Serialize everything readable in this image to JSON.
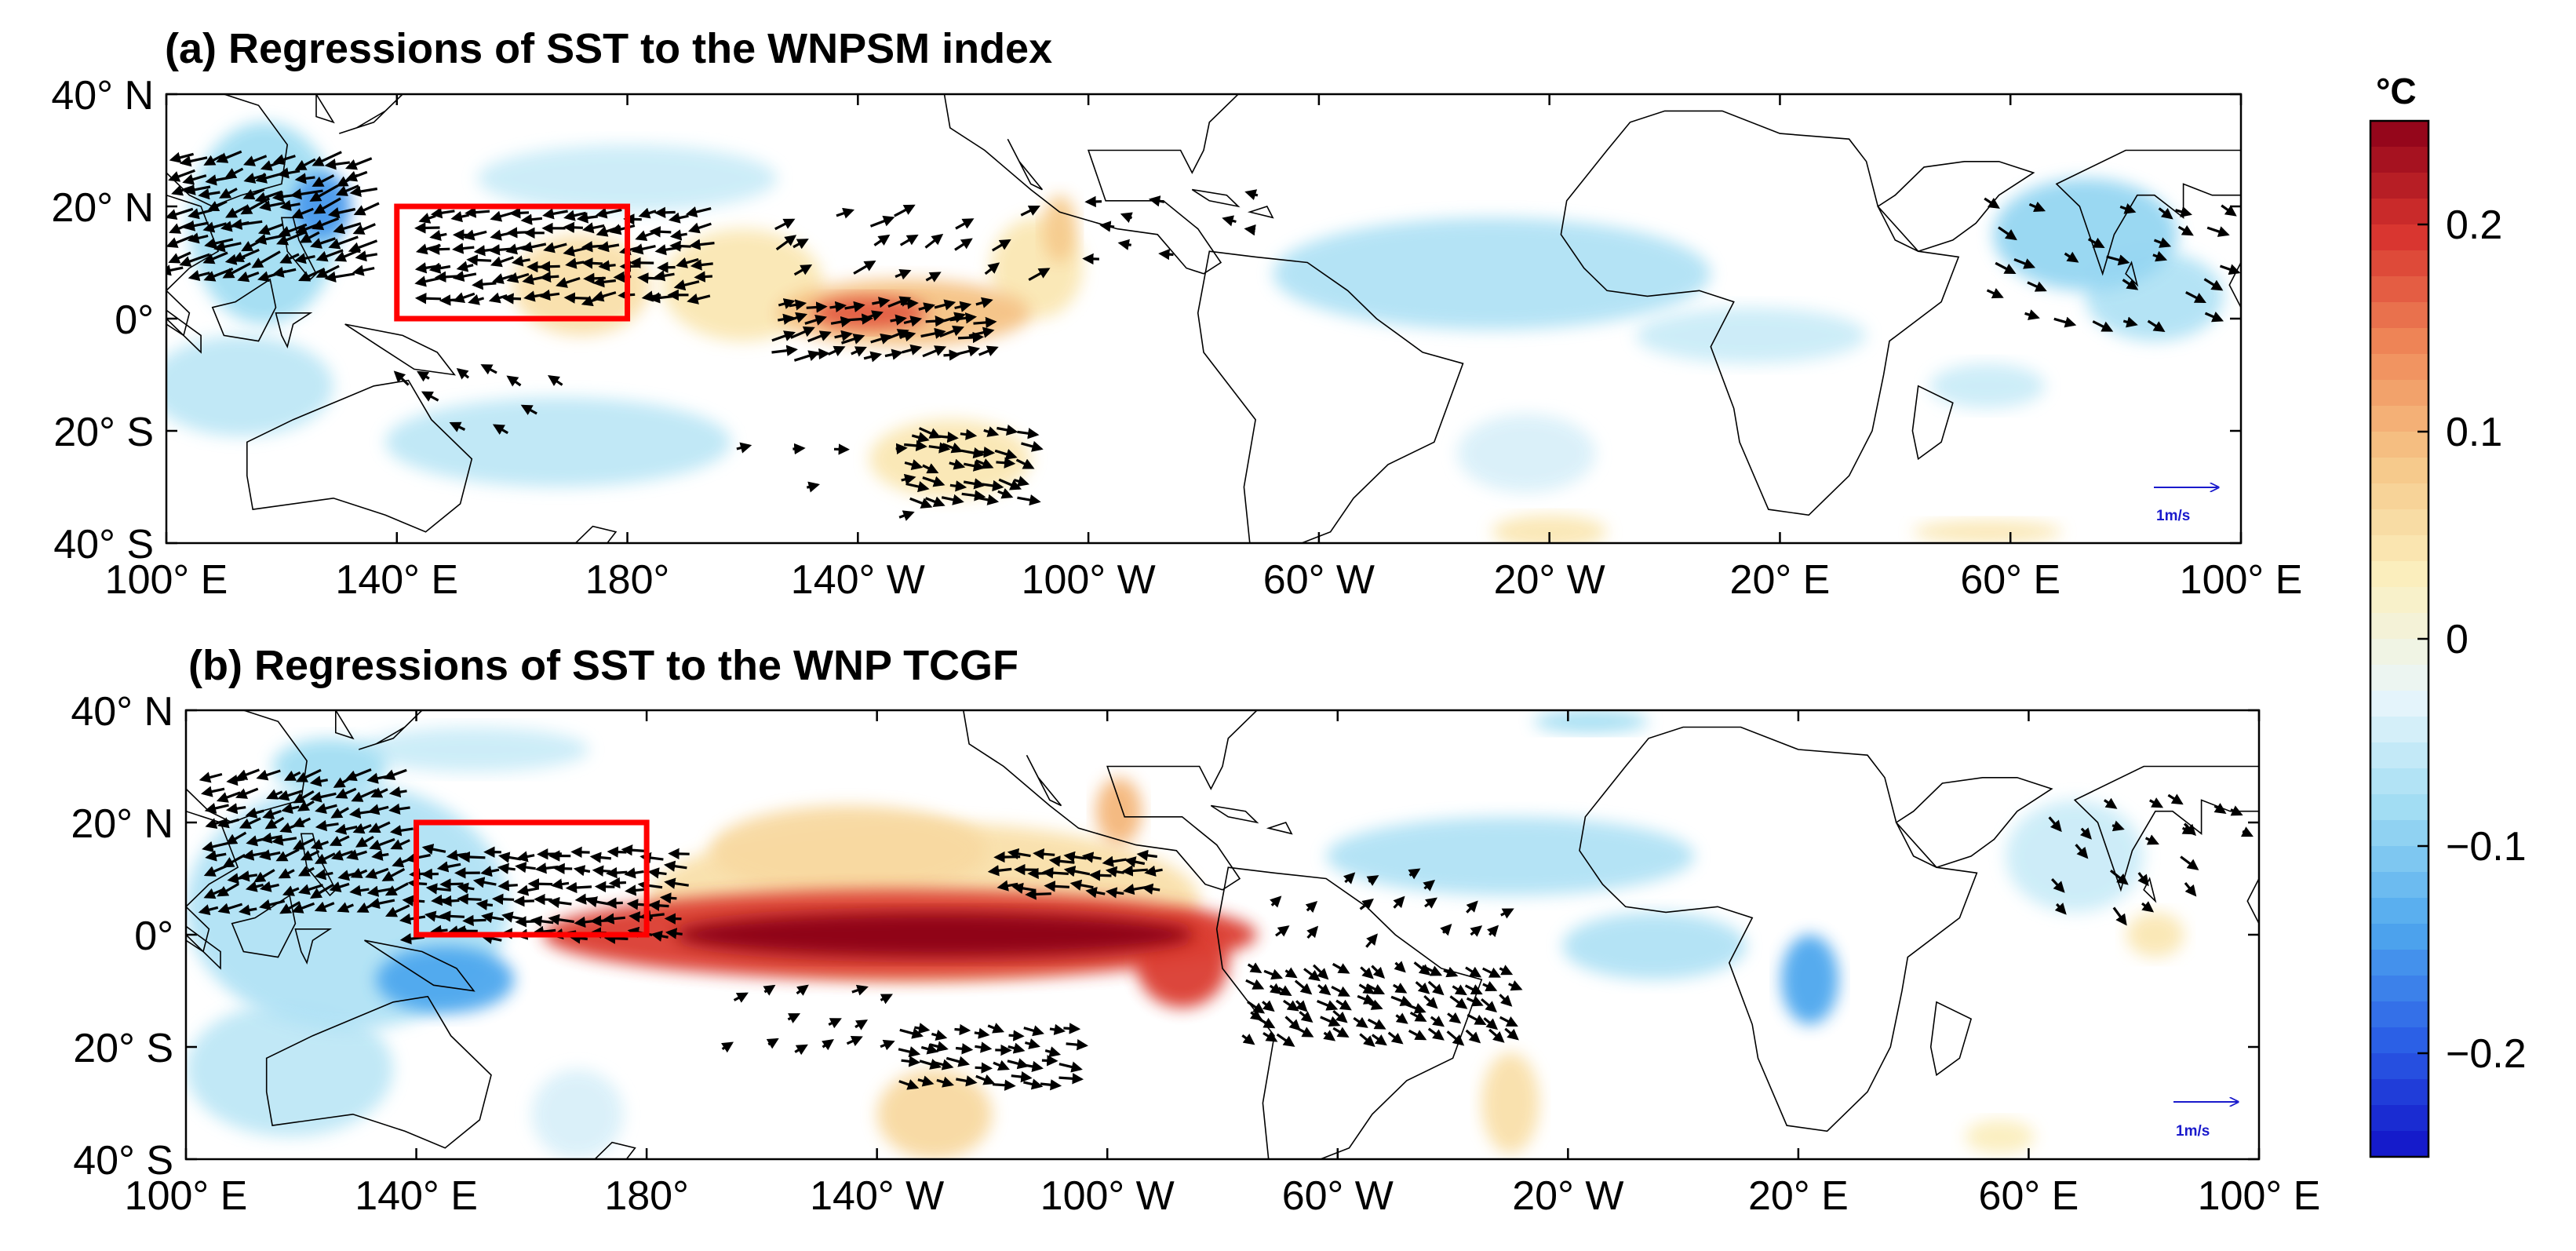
{
  "chart_data": {
    "type": "heatmap",
    "colorbar": {
      "unit_label": "°C",
      "range": [
        -0.25,
        0.25
      ],
      "ticks": [
        {
          "value": 0.2,
          "label": "0.2"
        },
        {
          "value": 0.1,
          "label": "0.1"
        },
        {
          "value": 0,
          "label": "0"
        },
        {
          "value": -0.1,
          "label": "−0.1"
        },
        {
          "value": -0.2,
          "label": "−0.2"
        }
      ],
      "colors": [
        "#1212c8",
        "#2b5fe6",
        "#4fa8ee",
        "#9fdcf3",
        "#e9f6fb",
        "#fbf0c0",
        "#f6c98a",
        "#f08c5a",
        "#d9352f",
        "#8c0018"
      ]
    },
    "panels": [
      {
        "title": "(a) Regressions of SST to the WNPSM index",
        "xticks": [
          {
            "value": 100,
            "label": "100° E"
          },
          {
            "value": 140,
            "label": "140° E"
          },
          {
            "value": 180,
            "label": "180°"
          },
          {
            "value": 220,
            "label": "140° W"
          },
          {
            "value": 260,
            "label": "100° W"
          },
          {
            "value": 300,
            "label": "60° W"
          },
          {
            "value": 340,
            "label": "20° W"
          },
          {
            "value": 380,
            "label": "20° E"
          },
          {
            "value": 420,
            "label": "60° E"
          },
          {
            "value": 460,
            "label": "100° E"
          }
        ],
        "yticks": [
          {
            "value": 40,
            "label": "40° N"
          },
          {
            "value": 20,
            "label": "20° N"
          },
          {
            "value": 0,
            "label": "0°"
          },
          {
            "value": -20,
            "label": "20° S"
          },
          {
            "value": -40,
            "label": "40° S"
          }
        ],
        "xlim": [
          100,
          460
        ],
        "ylim": [
          -40,
          40
        ],
        "box": {
          "lon": [
            140,
            180
          ],
          "lat": [
            0,
            20
          ]
        },
        "reference_vector_label": "1m/s",
        "sst_features": [
          {
            "lon": 172,
            "lat": 6,
            "rlon": 12,
            "rlat": 9,
            "value": 0.05
          },
          {
            "lon": 200,
            "lat": 6,
            "rlon": 14,
            "rlat": 10,
            "value": 0.04
          },
          {
            "lon": 228,
            "lat": 1,
            "rlon": 22,
            "rlat": 6,
            "value": 0.09
          },
          {
            "lon": 222,
            "lat": 1,
            "rlon": 10,
            "rlat": 3,
            "value": 0.17
          },
          {
            "lon": 251,
            "lat": 9,
            "rlon": 8,
            "rlat": 9,
            "value": 0.04
          },
          {
            "lon": 255,
            "lat": 16,
            "rlon": 3,
            "rlat": 6,
            "value": 0.08
          },
          {
            "lon": 236,
            "lat": -25,
            "rlon": 14,
            "rlat": 7,
            "value": 0.04
          },
          {
            "lon": 340,
            "lat": -38,
            "rlon": 10,
            "rlat": 3,
            "value": 0.04
          },
          {
            "lon": 416,
            "lat": -38,
            "rlon": 13,
            "rlat": 2,
            "value": 0.04
          },
          {
            "lon": 117,
            "lat": 17,
            "rlon": 13,
            "rlat": 18,
            "value": -0.08
          },
          {
            "lon": 127,
            "lat": 20,
            "rlon": 5,
            "rlat": 6,
            "value": -0.15
          },
          {
            "lon": 113,
            "lat": -12,
            "rlon": 16,
            "rlat": 9,
            "value": -0.06
          },
          {
            "lon": 168,
            "lat": -22,
            "rlon": 30,
            "rlat": 8,
            "value": -0.06
          },
          {
            "lon": 180,
            "lat": 25,
            "rlon": 26,
            "rlat": 6,
            "value": -0.05
          },
          {
            "lon": 330,
            "lat": 8,
            "rlon": 38,
            "rlat": 10,
            "value": -0.07
          },
          {
            "lon": 375,
            "lat": -3,
            "rlon": 20,
            "rlat": 5,
            "value": -0.05
          },
          {
            "lon": 336,
            "lat": -24,
            "rlon": 12,
            "rlat": 7,
            "value": -0.04
          },
          {
            "lon": 433,
            "lat": 15,
            "rlon": 16,
            "rlat": 10,
            "value": -0.09
          },
          {
            "lon": 445,
            "lat": 4,
            "rlon": 12,
            "rlat": 8,
            "value": -0.07
          },
          {
            "lon": 416,
            "lat": -12,
            "rlon": 10,
            "rlat": 4,
            "value": -0.05
          }
        ],
        "wind_regions": [
          {
            "lon": [
              102,
              135
            ],
            "lat": [
              8,
              30
            ],
            "u": -1.2,
            "v": -0.4,
            "dense": true
          },
          {
            "lon": [
              145,
              195
            ],
            "lat": [
              4,
              19
            ],
            "u": -1.0,
            "v": -0.15,
            "dense": true
          },
          {
            "lon": [
              207,
              243
            ],
            "lat": [
              -6,
              4
            ],
            "u": 1.0,
            "v": 0.25,
            "dense": true
          },
          {
            "lon": [
              230,
              252
            ],
            "lat": [
              -32,
              -18
            ],
            "u": 0.9,
            "v": -0.25,
            "dense": true
          },
          {
            "lon": [
              206,
              252
            ],
            "lat": [
              8,
              22
            ],
            "u": 0.9,
            "v": 0.5,
            "dense": false
          },
          {
            "lon": [
              140,
              170
            ],
            "lat": [
              -20,
              -8
            ],
            "u": -0.6,
            "v": 0.45,
            "dense": false
          },
          {
            "lon": [
              418,
              458
            ],
            "lat": [
              0,
              20
            ],
            "u": 0.8,
            "v": -0.4,
            "dense": false
          },
          {
            "lon": [
              262,
              292
            ],
            "lat": [
              12,
              22
            ],
            "u": -0.6,
            "v": 0.1,
            "dense": false
          },
          {
            "lon": [
              200,
              230
            ],
            "lat": [
              -34,
              -20
            ],
            "u": 0.6,
            "v": 0.1,
            "dense": false
          }
        ]
      },
      {
        "title": "(b) Regressions of SST to the WNP TCGF",
        "xticks": [
          {
            "value": 100,
            "label": "100° E"
          },
          {
            "value": 140,
            "label": "140° E"
          },
          {
            "value": 180,
            "label": "180°"
          },
          {
            "value": 220,
            "label": "140° W"
          },
          {
            "value": 260,
            "label": "100° W"
          },
          {
            "value": 300,
            "label": "60° W"
          },
          {
            "value": 340,
            "label": "20° W"
          },
          {
            "value": 380,
            "label": "20° E"
          },
          {
            "value": 420,
            "label": "60° E"
          },
          {
            "value": 460,
            "label": "100° E"
          }
        ],
        "yticks": [
          {
            "value": 40,
            "label": "40° N"
          },
          {
            "value": 20,
            "label": "20° N"
          },
          {
            "value": 0,
            "label": "0°"
          },
          {
            "value": -20,
            "label": "20° S"
          },
          {
            "value": -40,
            "label": "40° S"
          }
        ],
        "xlim": [
          100,
          460
        ],
        "ylim": [
          -40,
          40
        ],
        "box": {
          "lon": [
            140,
            180
          ],
          "lat": [
            0,
            20
          ]
        },
        "reference_vector_label": "1m/s",
        "sst_features": [
          {
            "lon": 228,
            "lat": 6,
            "rlon": 48,
            "rlat": 14,
            "value": 0.05
          },
          {
            "lon": 215,
            "lat": 15,
            "rlon": 24,
            "rlat": 8,
            "value": 0.06
          },
          {
            "lon": 262,
            "lat": 22,
            "rlon": 4,
            "rlat": 6,
            "value": 0.1
          },
          {
            "lon": 230,
            "lat": -32,
            "rlon": 10,
            "rlat": 8,
            "value": 0.06
          },
          {
            "lon": 330,
            "lat": -30,
            "rlon": 5,
            "rlat": 9,
            "value": 0.05
          },
          {
            "lon": 442,
            "lat": 0,
            "rlon": 5,
            "rlat": 4,
            "value": 0.04
          },
          {
            "lon": 415,
            "lat": -36,
            "rlon": 6,
            "rlat": 3,
            "value": 0.03
          },
          {
            "lon": 224,
            "lat": 0,
            "rlon": 62,
            "rlat": 8,
            "value": 0.19
          },
          {
            "lon": 230,
            "lat": 0,
            "rlon": 45,
            "rlat": 4,
            "value": 0.25
          },
          {
            "lon": 273,
            "lat": -5,
            "rlon": 8,
            "rlat": 8,
            "value": 0.19
          },
          {
            "lon": 128,
            "lat": 5,
            "rlon": 28,
            "rlat": 22,
            "value": -0.07
          },
          {
            "lon": 145,
            "lat": -8,
            "rlon": 12,
            "rlat": 6,
            "value": -0.14
          },
          {
            "lon": 125,
            "lat": 30,
            "rlon": 10,
            "rlat": 5,
            "value": -0.08
          },
          {
            "lon": 150,
            "lat": 33,
            "rlon": 20,
            "rlat": 4,
            "value": -0.05
          },
          {
            "lon": 118,
            "lat": -24,
            "rlon": 18,
            "rlat": 12,
            "value": -0.06
          },
          {
            "lon": 168,
            "lat": -32,
            "rlon": 8,
            "rlat": 8,
            "value": -0.04
          },
          {
            "lon": 330,
            "lat": 14,
            "rlon": 32,
            "rlat": 7,
            "value": -0.07
          },
          {
            "lon": 355,
            "lat": -2,
            "rlon": 16,
            "rlat": 6,
            "value": -0.07
          },
          {
            "lon": 382,
            "lat": -8,
            "rlon": 5,
            "rlat": 8,
            "value": -0.14
          },
          {
            "lon": 344,
            "lat": 38,
            "rlon": 10,
            "rlat": 2,
            "value": -0.08
          },
          {
            "lon": 428,
            "lat": 14,
            "rlon": 12,
            "rlat": 10,
            "value": -0.05
          }
        ],
        "wind_regions": [
          {
            "lon": [
              105,
              140
            ],
            "lat": [
              5,
              30
            ],
            "u": -1.0,
            "v": -0.35,
            "dense": true
          },
          {
            "lon": [
              140,
              185
            ],
            "lat": [
              0,
              17
            ],
            "u": -1.0,
            "v": 0.0,
            "dense": true
          },
          {
            "lon": [
              242,
              268
            ],
            "lat": [
              8,
              16
            ],
            "u": -1.0,
            "v": 0.0,
            "dense": true
          },
          {
            "lon": [
              285,
              330
            ],
            "lat": [
              -18,
              -6
            ],
            "u": 0.7,
            "v": -0.45,
            "dense": true
          },
          {
            "lon": [
              225,
              255
            ],
            "lat": [
              -26,
              -15
            ],
            "u": 0.9,
            "v": -0.2,
            "dense": true
          },
          {
            "lon": [
              195,
              225
            ],
            "lat": [
              -20,
              -8
            ],
            "u": 0.6,
            "v": 0.3,
            "dense": false
          },
          {
            "lon": [
              425,
              448
            ],
            "lat": [
              4,
              20
            ],
            "u": 0.6,
            "v": -0.6,
            "dense": false
          },
          {
            "lon": [
              290,
              330
            ],
            "lat": [
              0,
              10
            ],
            "u": 0.5,
            "v": 0.4,
            "dense": false
          },
          {
            "lon": [
              430,
              460
            ],
            "lat": [
              18,
              26
            ],
            "u": 0.6,
            "v": -0.3,
            "dense": false
          }
        ]
      }
    ]
  }
}
